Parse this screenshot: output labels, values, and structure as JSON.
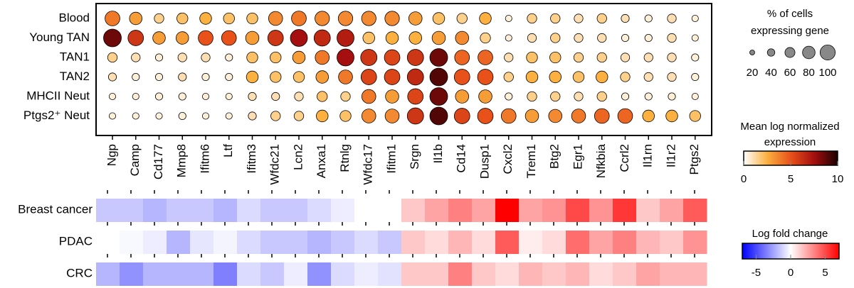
{
  "chart_data": [
    {
      "type": "dotplot",
      "rows": [
        "Blood",
        "Young TAN",
        "TAN1",
        "TAN2",
        "MHCII Neut",
        "Ptgs2⁺ Neut"
      ],
      "categories": [
        "Ngp",
        "Camp",
        "Cd177",
        "Mmp8",
        "Ifitm6",
        "Ltf",
        "Ifitm3",
        "Wfdc21",
        "Lcn2",
        "Anxa1",
        "Rtnlg",
        "Wfdc17",
        "Ifitm1",
        "Srgn",
        "Il1b",
        "Cd14",
        "Dusp1",
        "Cxcl2",
        "Trem1",
        "Btg2",
        "Egr1",
        "Nfkbia",
        "Ccrl2",
        "Il1rn",
        "Il1r2",
        "Ptgs2"
      ],
      "values": [
        [
          4,
          3,
          1.5,
          2,
          2.5,
          2,
          2,
          3.5,
          4,
          3.5,
          3.5,
          3.5,
          3.5,
          3,
          2,
          1.5,
          2.5,
          0.5,
          1.5,
          1.5,
          1,
          1.5,
          1,
          0.5,
          1,
          0.5
        ],
        [
          8.5,
          6,
          3,
          3,
          5,
          5,
          3,
          6,
          7.5,
          6.5,
          7,
          2,
          2.5,
          2.5,
          3,
          3.5,
          1.5,
          0.5,
          1,
          1.5,
          1,
          1,
          0.5,
          0.5,
          1,
          0.5
        ],
        [
          1.5,
          1,
          0.5,
          1,
          1,
          0.5,
          2,
          2,
          3,
          4,
          7.5,
          6,
          5.5,
          6,
          8.5,
          4.5,
          4.5,
          1,
          2,
          2,
          1.5,
          1.5,
          1,
          1,
          1,
          0.5
        ],
        [
          1,
          0.5,
          0.5,
          1,
          0.5,
          0.5,
          2.5,
          2,
          2,
          3,
          4,
          5.5,
          5.5,
          6.5,
          9,
          5,
          5,
          1.5,
          2.5,
          2.5,
          2,
          2.5,
          1.5,
          1,
          1,
          0.5
        ],
        [
          0.5,
          0.5,
          0.5,
          0.5,
          0.5,
          0.5,
          1,
          1,
          1,
          2,
          1.5,
          4,
          3,
          5.5,
          8.5,
          3,
          3,
          0.5,
          1.5,
          1.5,
          1,
          1.5,
          0.5,
          0.5,
          0.5,
          0.5
        ],
        [
          0.5,
          0.5,
          0.5,
          0.5,
          0.5,
          0.5,
          1,
          1.5,
          1.5,
          2.5,
          2,
          3.5,
          3.5,
          6,
          9,
          5.5,
          5,
          4,
          3,
          3.5,
          4,
          4.5,
          4.5,
          2.5,
          2.5,
          2
        ]
      ],
      "sizes": [
        [
          80,
          65,
          45,
          55,
          60,
          55,
          55,
          75,
          80,
          78,
          78,
          78,
          78,
          70,
          60,
          50,
          60,
          25,
          45,
          45,
          40,
          45,
          35,
          30,
          40,
          25
        ],
        [
          100,
          85,
          65,
          65,
          80,
          80,
          70,
          85,
          95,
          90,
          95,
          60,
          65,
          65,
          70,
          70,
          50,
          25,
          40,
          45,
          40,
          40,
          30,
          30,
          40,
          25
        ],
        [
          45,
          40,
          30,
          40,
          40,
          30,
          55,
          55,
          65,
          75,
          95,
          90,
          85,
          90,
          100,
          80,
          80,
          40,
          55,
          55,
          45,
          45,
          40,
          40,
          40,
          30
        ],
        [
          35,
          30,
          30,
          35,
          30,
          30,
          60,
          55,
          55,
          65,
          75,
          85,
          85,
          90,
          100,
          85,
          85,
          45,
          60,
          60,
          55,
          60,
          45,
          40,
          40,
          30
        ],
        [
          25,
          25,
          30,
          30,
          25,
          25,
          35,
          35,
          40,
          50,
          45,
          75,
          70,
          85,
          100,
          70,
          70,
          30,
          45,
          45,
          40,
          45,
          30,
          30,
          30,
          25
        ],
        [
          25,
          25,
          25,
          30,
          25,
          25,
          35,
          45,
          45,
          60,
          55,
          75,
          75,
          90,
          100,
          85,
          85,
          80,
          70,
          70,
          75,
          80,
          80,
          60,
          60,
          55
        ]
      ],
      "size_title": [
        "% of cells",
        "expressing gene"
      ],
      "size_ticks": [
        20,
        40,
        60,
        80,
        100
      ],
      "color_title": [
        "Mean log normalized",
        "expression"
      ],
      "clim": [
        0,
        10
      ],
      "cticks": [
        0,
        5,
        10
      ],
      "colors": [
        "#ffffff",
        "#fbb040",
        "#e8521a",
        "#a50f0f",
        "#1a0000"
      ]
    },
    {
      "type": "heatmap",
      "rows": [
        "Breast cancer",
        "PDAC",
        "CRC"
      ],
      "values": [
        [
          -1.5,
          -1.5,
          -2,
          -1.5,
          -1.5,
          -2,
          -1,
          -1.5,
          -1.5,
          -1,
          -0.5,
          0,
          0,
          1.5,
          2.5,
          3.5,
          2.5,
          7,
          2.5,
          3,
          5,
          3,
          5.5,
          1.5,
          2.5,
          4.5
        ],
        [
          0,
          -0.2,
          -0.5,
          -2,
          -0.7,
          -0.3,
          -1,
          -1.5,
          -1.5,
          -2,
          -1.5,
          -1,
          -1.5,
          1.5,
          1,
          2,
          1,
          4.5,
          0.5,
          1,
          4,
          2.5,
          3.5,
          2,
          1.5,
          3
        ],
        [
          -2,
          -3,
          -2,
          -2,
          -2,
          -3.5,
          -1,
          -1.5,
          -0.5,
          -3,
          -1,
          -0.5,
          -0.8,
          1.5,
          1.5,
          3.5,
          1.5,
          1,
          2,
          1.5,
          2,
          1,
          1.5,
          2.5,
          2,
          2
        ]
      ],
      "color_title": "Log fold change",
      "clim": [
        -7,
        7
      ],
      "cticks": [
        -5,
        0,
        5
      ],
      "colors": [
        "#0000ff",
        "#ffffff",
        "#ff0000"
      ]
    }
  ]
}
